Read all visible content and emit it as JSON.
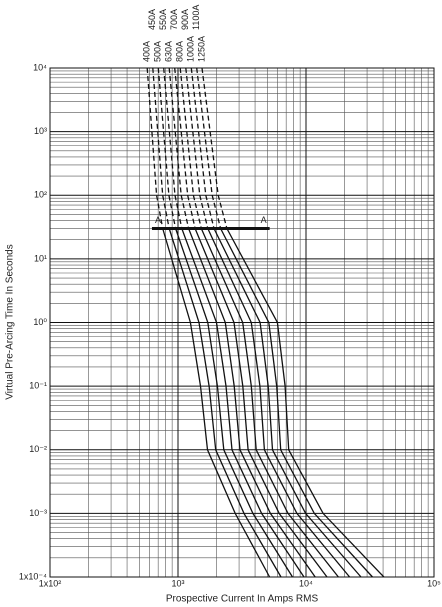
{
  "chart_data": {
    "type": "line",
    "x_label": "Prospective Current In Amps RMS",
    "y_label": "Virtual Pre-Arcing Time In Seconds",
    "log_x": true,
    "log_y": true,
    "grid": true,
    "color": "#111111",
    "dashed_above": 30,
    "xlim": [
      100,
      100000
    ],
    "ylim": [
      0.0001,
      10000
    ],
    "xticks": [
      {
        "value": 100,
        "label": "1x10²"
      },
      {
        "value": 1000,
        "label": "10³"
      },
      {
        "value": 10000,
        "label": "10⁴"
      },
      {
        "value": 100000,
        "label": "10⁵"
      }
    ],
    "yticks": [
      {
        "value": 0.0001,
        "label": "1x10⁻⁴"
      },
      {
        "value": 0.001,
        "label": "10⁻³"
      },
      {
        "value": 0.01,
        "label": "10⁻²"
      },
      {
        "value": 0.1,
        "label": "10⁻¹"
      },
      {
        "value": 1,
        "label": "10⁰"
      },
      {
        "value": 10,
        "label": "10¹"
      },
      {
        "value": 100,
        "label": "10²"
      },
      {
        "value": 1000,
        "label": "10³"
      },
      {
        "value": 10000,
        "label": "10⁴"
      }
    ],
    "series": [
      {
        "name": "400A",
        "x": [
          575,
          681,
          760,
          1250,
          1500,
          1700,
          2800,
          5200
        ],
        "y": [
          10000,
          100,
          30,
          1,
          0.1,
          0.01,
          0.001,
          0.0001
        ]
      },
      {
        "name": "450A",
        "x": [
          635,
          760,
          853,
          1460,
          1750,
          1970,
          3280,
          6380
        ],
        "y": [
          10000,
          100,
          30,
          1,
          0.1,
          0.01,
          0.001,
          0.0001
        ]
      },
      {
        "name": "500A",
        "x": [
          701,
          849,
          957,
          1710,
          2030,
          2280,
          3850,
          7850
        ],
        "y": [
          10000,
          100,
          30,
          1,
          0.1,
          0.01,
          0.001,
          0.0001
        ]
      },
      {
        "name": "550A",
        "x": [
          773,
          948,
          1070,
          2000,
          2370,
          2640,
          4500,
          9640
        ],
        "y": [
          10000,
          100,
          30,
          1,
          0.1,
          0.01,
          0.001,
          0.0001
        ]
      },
      {
        "name": "630A",
        "x": [
          853,
          1060,
          1210,
          2340,
          2750,
          3050,
          5270,
          11800
        ],
        "y": [
          10000,
          100,
          30,
          1,
          0.1,
          0.01,
          0.001,
          0.0001
        ]
      },
      {
        "name": "700A",
        "x": [
          942,
          1190,
          1360,
          2740,
          3210,
          3530,
          6180,
          14600
        ],
        "y": [
          10000,
          100,
          30,
          1,
          0.1,
          0.01,
          0.001,
          0.0001
        ]
      },
      {
        "name": "800A",
        "x": [
          1040,
          1320,
          1520,
          3200,
          3740,
          4080,
          7240,
          17900
        ],
        "y": [
          10000,
          100,
          30,
          1,
          0.1,
          0.01,
          0.001,
          0.0001
        ]
      },
      {
        "name": "900A",
        "x": [
          1150,
          1480,
          1710,
          3740,
          4360,
          4730,
          8490,
          21900
        ],
        "y": [
          10000,
          100,
          30,
          1,
          0.1,
          0.01,
          0.001,
          0.0001
        ]
      },
      {
        "name": "1000A",
        "x": [
          1270,
          1650,
          1910,
          4380,
          5070,
          5470,
          9930,
          26900
        ],
        "y": [
          10000,
          100,
          30,
          1,
          0.1,
          0.01,
          0.001,
          0.0001
        ]
      },
      {
        "name": "1100A",
        "x": [
          1400,
          1850,
          2150,
          5120,
          5900,
          6340,
          11600,
          33100
        ],
        "y": [
          10000,
          100,
          30,
          1,
          0.1,
          0.01,
          0.001,
          0.0001
        ]
      },
      {
        "name": "1250A",
        "x": [
          1540,
          2060,
          2410,
          5980,
          6870,
          7330,
          13600,
          40600
        ],
        "y": [
          10000,
          100,
          30,
          1,
          0.1,
          0.01,
          0.001,
          0.0001
        ]
      }
    ],
    "marker_line": {
      "x": [
        626,
        5200
      ],
      "y": 30,
      "labels": [
        "A",
        "A"
      ]
    }
  }
}
